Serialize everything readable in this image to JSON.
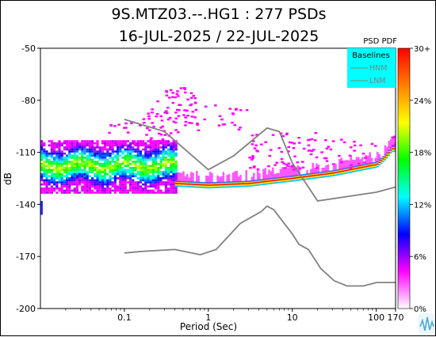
{
  "chart_data": {
    "type": "heatmap",
    "title_line1": "9S.MTZ03.--.HG1 : 277 PSDs",
    "title_line2": "16-JUL-2025 / 22-JUL-2025",
    "xlabel": "Period (Sec)",
    "ylabel": "dB",
    "x_scale": "log",
    "xlim": [
      0.01,
      170
    ],
    "ylim": [
      -200,
      -50
    ],
    "x_ticks": [
      {
        "value": 0.1,
        "label": "0.1"
      },
      {
        "value": 1,
        "label": "1"
      },
      {
        "value": 10,
        "label": "10"
      },
      {
        "value": 100,
        "label": "100"
      },
      {
        "value": 170,
        "label": "170"
      }
    ],
    "y_ticks": [
      {
        "value": -50,
        "label": "-50"
      },
      {
        "value": -80,
        "label": "-80"
      },
      {
        "value": -110,
        "label": "-110"
      },
      {
        "value": -140,
        "label": "-140"
      },
      {
        "value": -170,
        "label": "-170"
      },
      {
        "value": -200,
        "label": "-200"
      }
    ],
    "colorbar": {
      "label": "PSD PDF",
      "ticks": [
        "30+",
        "24%",
        "18%",
        "12%",
        "6%",
        "0%"
      ],
      "colors": [
        "#ffffff",
        "#ff00ff",
        "#0000ff",
        "#00ffff",
        "#00ff00",
        "#ffff00",
        "#ff8000",
        "#ff0000"
      ]
    },
    "legend": {
      "title": "Baselines",
      "entries": [
        "HNM",
        "LNM"
      ],
      "placement": "top-right",
      "background": "#00ffff"
    },
    "series": [
      {
        "name": "HNM",
        "color": "#808080",
        "points": [
          [
            0.1,
            -91
          ],
          [
            0.3,
            -98
          ],
          [
            1.0,
            -120
          ],
          [
            2.0,
            -112
          ],
          [
            5.0,
            -96
          ],
          [
            7.0,
            -98
          ],
          [
            10,
            -116
          ],
          [
            20,
            -138
          ],
          [
            100,
            -133
          ],
          [
            170,
            -130
          ]
        ]
      },
      {
        "name": "LNM",
        "color": "#808080",
        "points": [
          [
            0.1,
            -168
          ],
          [
            0.17,
            -167
          ],
          [
            0.4,
            -166
          ],
          [
            0.8,
            -169
          ],
          [
            1.24,
            -166
          ],
          [
            2.4,
            -151
          ],
          [
            4.3,
            -144
          ],
          [
            5,
            -141
          ],
          [
            6,
            -143
          ],
          [
            10,
            -157
          ],
          [
            12,
            -163
          ],
          [
            15.6,
            -166
          ],
          [
            21.9,
            -177
          ],
          [
            31.6,
            -184
          ],
          [
            45,
            -187
          ],
          [
            70,
            -187
          ],
          [
            101,
            -185
          ],
          [
            154,
            -185
          ],
          [
            170,
            -185
          ]
        ]
      }
    ],
    "pdf_mode_curve": {
      "name": "mode",
      "points": [
        [
          0.4,
          -128
        ],
        [
          1,
          -129
        ],
        [
          3,
          -128
        ],
        [
          10,
          -125
        ],
        [
          30,
          -122
        ],
        [
          100,
          -117
        ],
        [
          130,
          -112
        ],
        [
          150,
          -108
        ],
        [
          170,
          -108
        ]
      ]
    }
  }
}
